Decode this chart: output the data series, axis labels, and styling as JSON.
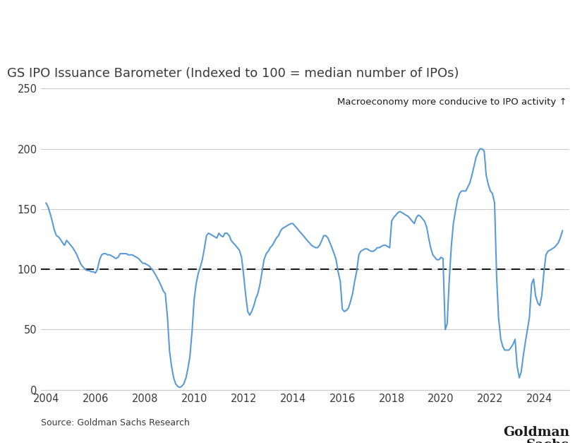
{
  "title": "GS IPO Issuance Barometer (Indexed to 100 = median number of IPOs)",
  "annotation": "Macroeconomy more conducive to IPO activity ↑",
  "source": "Source: Goldman Sachs Research",
  "goldman_sachs_line1": "Goldman",
  "goldman_sachs_line2": "Sachs",
  "line_color": "#5B9BD5",
  "dashed_line_color": "#1a1a1a",
  "background_color": "#ffffff",
  "grid_color": "#cccccc",
  "title_color": "#3a3a3a",
  "annotation_color": "#1a1a1a",
  "ylim": [
    0,
    250
  ],
  "yticks": [
    0,
    50,
    100,
    150,
    200,
    250
  ],
  "xlim_start": 2003.8,
  "xlim_end": 2025.2,
  "xticks": [
    2004,
    2006,
    2008,
    2010,
    2012,
    2014,
    2016,
    2018,
    2020,
    2022,
    2024
  ],
  "series": {
    "dates": [
      2004.0,
      2004.08,
      2004.17,
      2004.25,
      2004.33,
      2004.42,
      2004.5,
      2004.58,
      2004.67,
      2004.75,
      2004.83,
      2004.92,
      2005.0,
      2005.08,
      2005.17,
      2005.25,
      2005.33,
      2005.42,
      2005.5,
      2005.58,
      2005.67,
      2005.75,
      2005.83,
      2005.92,
      2006.0,
      2006.08,
      2006.17,
      2006.25,
      2006.33,
      2006.42,
      2006.5,
      2006.58,
      2006.67,
      2006.75,
      2006.83,
      2006.92,
      2007.0,
      2007.08,
      2007.17,
      2007.25,
      2007.33,
      2007.42,
      2007.5,
      2007.58,
      2007.67,
      2007.75,
      2007.83,
      2007.92,
      2008.0,
      2008.08,
      2008.17,
      2008.25,
      2008.33,
      2008.42,
      2008.5,
      2008.58,
      2008.67,
      2008.75,
      2008.83,
      2008.92,
      2009.0,
      2009.08,
      2009.17,
      2009.25,
      2009.33,
      2009.42,
      2009.5,
      2009.58,
      2009.67,
      2009.75,
      2009.83,
      2009.92,
      2010.0,
      2010.08,
      2010.17,
      2010.25,
      2010.33,
      2010.42,
      2010.5,
      2010.58,
      2010.67,
      2010.75,
      2010.83,
      2010.92,
      2011.0,
      2011.08,
      2011.17,
      2011.25,
      2011.33,
      2011.42,
      2011.5,
      2011.58,
      2011.67,
      2011.75,
      2011.83,
      2011.92,
      2012.0,
      2012.08,
      2012.17,
      2012.25,
      2012.33,
      2012.42,
      2012.5,
      2012.58,
      2012.67,
      2012.75,
      2012.83,
      2012.92,
      2013.0,
      2013.08,
      2013.17,
      2013.25,
      2013.33,
      2013.42,
      2013.5,
      2013.58,
      2013.67,
      2013.75,
      2013.83,
      2013.92,
      2014.0,
      2014.08,
      2014.17,
      2014.25,
      2014.33,
      2014.42,
      2014.5,
      2014.58,
      2014.67,
      2014.75,
      2014.83,
      2014.92,
      2015.0,
      2015.08,
      2015.17,
      2015.25,
      2015.33,
      2015.42,
      2015.5,
      2015.58,
      2015.67,
      2015.75,
      2015.83,
      2015.92,
      2016.0,
      2016.08,
      2016.17,
      2016.25,
      2016.33,
      2016.42,
      2016.5,
      2016.58,
      2016.67,
      2016.75,
      2016.83,
      2016.92,
      2017.0,
      2017.08,
      2017.17,
      2017.25,
      2017.33,
      2017.42,
      2017.5,
      2017.58,
      2017.67,
      2017.75,
      2017.83,
      2017.92,
      2018.0,
      2018.08,
      2018.17,
      2018.25,
      2018.33,
      2018.42,
      2018.5,
      2018.58,
      2018.67,
      2018.75,
      2018.83,
      2018.92,
      2019.0,
      2019.08,
      2019.17,
      2019.25,
      2019.33,
      2019.42,
      2019.5,
      2019.58,
      2019.67,
      2019.75,
      2019.83,
      2019.92,
      2020.0,
      2020.08,
      2020.17,
      2020.25,
      2020.33,
      2020.42,
      2020.5,
      2020.58,
      2020.67,
      2020.75,
      2020.83,
      2020.92,
      2021.0,
      2021.08,
      2021.17,
      2021.25,
      2021.33,
      2021.42,
      2021.5,
      2021.58,
      2021.67,
      2021.75,
      2021.83,
      2021.92,
      2022.0,
      2022.08,
      2022.17,
      2022.25,
      2022.33,
      2022.42,
      2022.5,
      2022.58,
      2022.67,
      2022.75,
      2022.83,
      2022.92,
      2023.0,
      2023.08,
      2023.17,
      2023.25,
      2023.33,
      2023.42,
      2023.5,
      2023.58,
      2023.67,
      2023.75,
      2023.83,
      2023.92,
      2024.0,
      2024.08,
      2024.17,
      2024.25,
      2024.33,
      2024.42,
      2024.5,
      2024.58,
      2024.67,
      2024.75,
      2024.83,
      2024.92
    ],
    "values": [
      155,
      152,
      146,
      140,
      133,
      128,
      127,
      125,
      122,
      120,
      124,
      122,
      120,
      118,
      115,
      112,
      108,
      104,
      102,
      100,
      99,
      99,
      98,
      98,
      97,
      100,
      108,
      112,
      113,
      113,
      112,
      112,
      111,
      110,
      109,
      110,
      113,
      113,
      113,
      113,
      112,
      112,
      112,
      111,
      110,
      109,
      107,
      105,
      105,
      104,
      103,
      101,
      99,
      96,
      93,
      90,
      86,
      82,
      80,
      60,
      33,
      20,
      10,
      5,
      3,
      2,
      3,
      5,
      10,
      18,
      28,
      50,
      75,
      88,
      97,
      102,
      108,
      118,
      128,
      130,
      129,
      128,
      127,
      126,
      130,
      128,
      127,
      130,
      130,
      128,
      124,
      122,
      120,
      118,
      116,
      110,
      96,
      80,
      65,
      62,
      65,
      70,
      76,
      80,
      88,
      98,
      108,
      113,
      115,
      118,
      120,
      123,
      126,
      128,
      132,
      134,
      135,
      136,
      137,
      138,
      138,
      136,
      134,
      132,
      130,
      128,
      126,
      124,
      122,
      120,
      119,
      118,
      118,
      120,
      124,
      128,
      128,
      126,
      122,
      118,
      113,
      108,
      98,
      90,
      67,
      65,
      66,
      68,
      73,
      80,
      90,
      98,
      112,
      115,
      116,
      117,
      117,
      116,
      115,
      115,
      116,
      118,
      118,
      119,
      120,
      120,
      119,
      118,
      140,
      143,
      145,
      147,
      148,
      147,
      146,
      145,
      144,
      142,
      140,
      138,
      143,
      145,
      144,
      142,
      140,
      135,
      126,
      118,
      112,
      110,
      108,
      108,
      110,
      109,
      50,
      55,
      90,
      120,
      138,
      148,
      158,
      163,
      165,
      165,
      165,
      168,
      172,
      178,
      185,
      193,
      197,
      200,
      200,
      198,
      178,
      170,
      165,
      163,
      155,
      95,
      60,
      42,
      36,
      33,
      33,
      33,
      35,
      38,
      42,
      20,
      10,
      15,
      28,
      40,
      50,
      60,
      88,
      92,
      78,
      72,
      70,
      78,
      98,
      112,
      115,
      116,
      117,
      118,
      120,
      122,
      126,
      132
    ]
  }
}
